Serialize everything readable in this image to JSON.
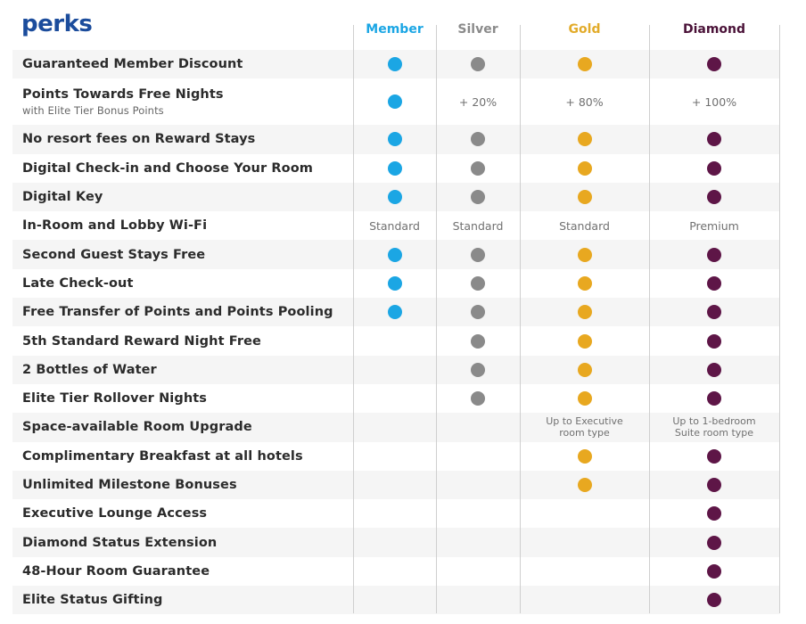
{
  "title": "perks",
  "tiers": [
    {
      "key": "member",
      "label": "Member",
      "color": "#1ba6e4"
    },
    {
      "key": "silver",
      "label": "Silver",
      "color": "#8a8a8a"
    },
    {
      "key": "gold",
      "label": "Gold",
      "color": "#e8a820"
    },
    {
      "key": "diamond",
      "label": "Diamond",
      "color": "#5e1647"
    }
  ],
  "header_text_colors": {
    "member": "#1ba6e4",
    "silver": "#8a8a8a",
    "gold": "#e2ab2a",
    "diamond": "#4a1238"
  },
  "perks": [
    {
      "label": "Guaranteed Member Discount",
      "member": "dot",
      "silver": "dot",
      "gold": "dot",
      "diamond": "dot"
    },
    {
      "label": "Points Towards Free Nights",
      "sublabel": "with Elite Tier Bonus Points",
      "member": "dot",
      "silver": "+ 20%",
      "gold": "+ 80%",
      "diamond": "+ 100%"
    },
    {
      "label": "No resort fees on Reward Stays",
      "member": "dot",
      "silver": "dot",
      "gold": "dot",
      "diamond": "dot"
    },
    {
      "label": "Digital Check-in and Choose Your Room",
      "member": "dot",
      "silver": "dot",
      "gold": "dot",
      "diamond": "dot"
    },
    {
      "label": "Digital Key",
      "member": "dot",
      "silver": "dot",
      "gold": "dot",
      "diamond": "dot"
    },
    {
      "label": "In-Room and Lobby Wi-Fi",
      "member": "Standard",
      "silver": "Standard",
      "gold": "Standard",
      "diamond": "Premium"
    },
    {
      "label": "Second Guest Stays Free",
      "member": "dot",
      "silver": "dot",
      "gold": "dot",
      "diamond": "dot"
    },
    {
      "label": "Late Check-out",
      "member": "dot",
      "silver": "dot",
      "gold": "dot",
      "diamond": "dot"
    },
    {
      "label": "Free Transfer of Points and Points Pooling",
      "member": "dot",
      "silver": "dot",
      "gold": "dot",
      "diamond": "dot"
    },
    {
      "label": "5th Standard Reward Night Free",
      "member": "",
      "silver": "dot",
      "gold": "dot",
      "diamond": "dot"
    },
    {
      "label": "2 Bottles of Water",
      "member": "",
      "silver": "dot",
      "gold": "dot",
      "diamond": "dot"
    },
    {
      "label": "Elite Tier Rollover Nights",
      "member": "",
      "silver": "dot",
      "gold": "dot",
      "diamond": "dot"
    },
    {
      "label": "Space-available Room Upgrade",
      "member": "",
      "silver": "",
      "gold": "Up to Executive\nroom type",
      "diamond": "Up to 1-bedroom\nSuite room type"
    },
    {
      "label": "Complimentary Breakfast at all hotels",
      "member": "",
      "silver": "",
      "gold": "dot",
      "diamond": "dot"
    },
    {
      "label": "Unlimited Milestone Bonuses",
      "member": "",
      "silver": "",
      "gold": "dot",
      "diamond": "dot"
    },
    {
      "label": "Executive Lounge Access",
      "member": "",
      "silver": "",
      "gold": "",
      "diamond": "dot"
    },
    {
      "label": "Diamond Status Extension",
      "member": "",
      "silver": "",
      "gold": "",
      "diamond": "dot"
    },
    {
      "label": "48-Hour Room Guarantee",
      "member": "",
      "silver": "",
      "gold": "",
      "diamond": "dot"
    },
    {
      "label": "Elite Status Gifting",
      "member": "",
      "silver": "",
      "gold": "",
      "diamond": "dot"
    }
  ]
}
